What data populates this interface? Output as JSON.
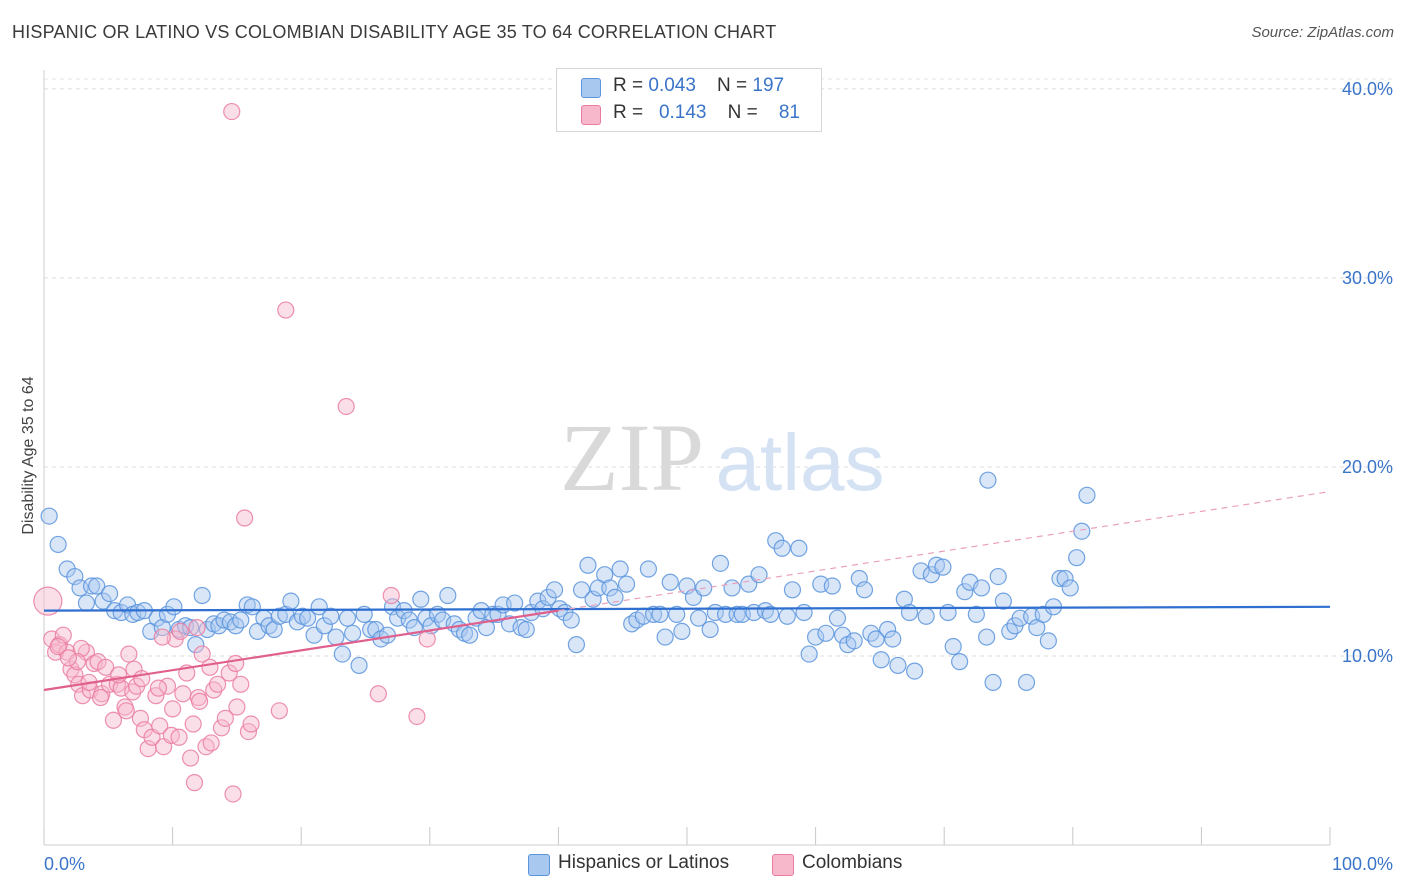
{
  "title": "HISPANIC OR LATINO VS COLOMBIAN DISABILITY AGE 35 TO 64 CORRELATION CHART",
  "source": "Source: ZipAtlas.com",
  "watermark": {
    "zip": "ZIP",
    "atlas": "atlas"
  },
  "legend": {
    "rows": [
      {
        "r_label": "R = ",
        "r_value": "0.043",
        "n_label": "N = ",
        "n_value": "197",
        "color": "#a8c8f0"
      },
      {
        "r_label": "R = ",
        "r_value": "0.143",
        "n_label": "N = ",
        "n_value": "81",
        "color": "#f7b8cc"
      }
    ]
  },
  "bottom_legend": [
    {
      "label": "Hispanics or Latinos",
      "color": "#a8c8f0"
    },
    {
      "label": "Colombians",
      "color": "#f7b8cc"
    }
  ],
  "chart_data": {
    "type": "scatter",
    "title": "HISPANIC OR LATINO VS COLOMBIAN DISABILITY AGE 35 TO 64 CORRELATION CHART",
    "ylabel": "Disability Age 35 to 64",
    "xlabel": "",
    "x_tick_labels": [
      "0.0%",
      "100.0%"
    ],
    "y_tick_labels": [
      "10.0%",
      "20.0%",
      "30.0%",
      "40.0%"
    ],
    "y_ticks": [
      10,
      20,
      30,
      40
    ],
    "xlim": [
      0,
      100
    ],
    "ylim": [
      0,
      41
    ],
    "grid": true,
    "series": [
      {
        "name": "Hispanics or Latinos",
        "color": "#5a94dd",
        "fill": "#a8c8f0",
        "trend": {
          "x": [
            0,
            100
          ],
          "y": [
            12.4,
            12.6
          ],
          "dashed": false,
          "color": "#2f6fd0"
        },
        "points": [
          [
            0.4,
            17.4
          ],
          [
            1.1,
            15.9
          ],
          [
            1.8,
            14.6
          ],
          [
            2.4,
            14.2
          ],
          [
            2.8,
            13.6
          ],
          [
            3.3,
            12.8
          ],
          [
            3.7,
            13.7
          ],
          [
            4.1,
            13.7
          ],
          [
            4.6,
            12.9
          ],
          [
            5.1,
            13.3
          ],
          [
            5.5,
            12.4
          ],
          [
            6.0,
            12.3
          ],
          [
            6.5,
            12.7
          ],
          [
            6.9,
            12.2
          ],
          [
            7.3,
            12.3
          ],
          [
            7.8,
            12.4
          ],
          [
            8.3,
            11.3
          ],
          [
            8.8,
            12.0
          ],
          [
            9.2,
            11.5
          ],
          [
            9.6,
            12.2
          ],
          [
            10.1,
            12.6
          ],
          [
            10.5,
            11.4
          ],
          [
            11.0,
            11.6
          ],
          [
            11.4,
            11.5
          ],
          [
            11.8,
            10.6
          ],
          [
            12.3,
            13.2
          ],
          [
            12.7,
            11.4
          ],
          [
            13.2,
            11.7
          ],
          [
            13.6,
            11.6
          ],
          [
            14.0,
            11.9
          ],
          [
            14.5,
            11.8
          ],
          [
            14.9,
            11.6
          ],
          [
            15.3,
            11.9
          ],
          [
            15.8,
            12.7
          ],
          [
            16.2,
            12.6
          ],
          [
            16.6,
            11.3
          ],
          [
            17.1,
            12.0
          ],
          [
            17.5,
            11.6
          ],
          [
            17.9,
            11.4
          ],
          [
            18.3,
            12.1
          ],
          [
            18.8,
            12.2
          ],
          [
            19.2,
            12.9
          ],
          [
            19.7,
            11.8
          ],
          [
            20.1,
            12.1
          ],
          [
            20.5,
            12.0
          ],
          [
            21.0,
            11.1
          ],
          [
            21.4,
            12.6
          ],
          [
            21.8,
            11.6
          ],
          [
            22.3,
            12.1
          ],
          [
            22.7,
            11.0
          ],
          [
            23.2,
            10.1
          ],
          [
            23.6,
            12.0
          ],
          [
            24.0,
            11.2
          ],
          [
            24.5,
            9.5
          ],
          [
            24.9,
            12.2
          ],
          [
            25.4,
            11.4
          ],
          [
            25.8,
            11.4
          ],
          [
            26.2,
            10.9
          ],
          [
            26.7,
            11.1
          ],
          [
            27.1,
            12.6
          ],
          [
            27.5,
            12.0
          ],
          [
            28.0,
            12.4
          ],
          [
            28.4,
            11.9
          ],
          [
            28.8,
            11.5
          ],
          [
            29.3,
            13.0
          ],
          [
            29.7,
            12.0
          ],
          [
            30.1,
            11.6
          ],
          [
            30.6,
            12.2
          ],
          [
            31.0,
            11.9
          ],
          [
            31.4,
            13.2
          ],
          [
            31.9,
            11.7
          ],
          [
            32.3,
            11.4
          ],
          [
            32.7,
            11.2
          ],
          [
            33.1,
            11.1
          ],
          [
            33.6,
            12.0
          ],
          [
            34.0,
            12.4
          ],
          [
            34.4,
            11.5
          ],
          [
            34.9,
            12.2
          ],
          [
            35.3,
            12.2
          ],
          [
            35.7,
            12.7
          ],
          [
            36.2,
            11.7
          ],
          [
            36.6,
            12.8
          ],
          [
            37.1,
            11.5
          ],
          [
            37.5,
            11.4
          ],
          [
            37.9,
            12.3
          ],
          [
            38.4,
            12.9
          ],
          [
            38.8,
            12.5
          ],
          [
            39.2,
            13.1
          ],
          [
            39.7,
            13.5
          ],
          [
            40.1,
            12.5
          ],
          [
            40.5,
            12.3
          ],
          [
            41.0,
            11.9
          ],
          [
            41.4,
            10.6
          ],
          [
            41.8,
            13.5
          ],
          [
            42.3,
            14.8
          ],
          [
            42.7,
            13.0
          ],
          [
            43.1,
            13.6
          ],
          [
            43.6,
            14.3
          ],
          [
            44.0,
            13.6
          ],
          [
            44.4,
            13.1
          ],
          [
            44.8,
            14.6
          ],
          [
            45.3,
            13.8
          ],
          [
            45.7,
            11.7
          ],
          [
            46.1,
            11.9
          ],
          [
            46.6,
            12.1
          ],
          [
            47.0,
            14.6
          ],
          [
            47.4,
            12.2
          ],
          [
            47.9,
            12.2
          ],
          [
            48.3,
            11.0
          ],
          [
            48.7,
            13.9
          ],
          [
            49.2,
            12.2
          ],
          [
            49.6,
            11.3
          ],
          [
            50.0,
            13.7
          ],
          [
            50.5,
            13.1
          ],
          [
            50.9,
            12.0
          ],
          [
            51.3,
            13.6
          ],
          [
            51.8,
            11.4
          ],
          [
            52.2,
            12.3
          ],
          [
            52.6,
            14.9
          ],
          [
            53.0,
            12.2
          ],
          [
            53.5,
            13.6
          ],
          [
            53.9,
            12.2
          ],
          [
            54.3,
            12.2
          ],
          [
            54.8,
            13.8
          ],
          [
            55.2,
            12.3
          ],
          [
            55.6,
            14.3
          ],
          [
            56.1,
            12.4
          ],
          [
            56.5,
            12.2
          ],
          [
            56.9,
            16.1
          ],
          [
            57.4,
            15.7
          ],
          [
            57.8,
            12.1
          ],
          [
            58.2,
            13.5
          ],
          [
            58.7,
            15.7
          ],
          [
            59.1,
            12.3
          ],
          [
            59.5,
            10.1
          ],
          [
            60.0,
            11.0
          ],
          [
            60.4,
            13.8
          ],
          [
            60.8,
            11.2
          ],
          [
            61.3,
            13.7
          ],
          [
            61.7,
            12.0
          ],
          [
            62.1,
            11.1
          ],
          [
            62.5,
            10.6
          ],
          [
            63.0,
            10.8
          ],
          [
            63.4,
            14.1
          ],
          [
            63.8,
            13.5
          ],
          [
            64.3,
            11.2
          ],
          [
            64.7,
            10.9
          ],
          [
            65.1,
            9.8
          ],
          [
            65.6,
            11.4
          ],
          [
            66.0,
            10.9
          ],
          [
            66.4,
            9.5
          ],
          [
            66.9,
            13.0
          ],
          [
            67.3,
            12.3
          ],
          [
            67.7,
            9.2
          ],
          [
            68.2,
            14.5
          ],
          [
            68.6,
            12.1
          ],
          [
            69.0,
            14.3
          ],
          [
            69.4,
            14.8
          ],
          [
            69.9,
            14.7
          ],
          [
            70.3,
            12.3
          ],
          [
            70.7,
            10.5
          ],
          [
            71.2,
            9.7
          ],
          [
            71.6,
            13.4
          ],
          [
            72.0,
            13.9
          ],
          [
            72.5,
            12.2
          ],
          [
            72.9,
            13.6
          ],
          [
            73.3,
            11.0
          ],
          [
            73.8,
            8.6
          ],
          [
            74.2,
            14.2
          ],
          [
            74.6,
            12.9
          ],
          [
            75.1,
            11.3
          ],
          [
            75.5,
            11.6
          ],
          [
            75.9,
            12.0
          ],
          [
            76.4,
            8.6
          ],
          [
            76.8,
            12.1
          ],
          [
            77.2,
            11.5
          ],
          [
            77.7,
            12.2
          ],
          [
            78.1,
            10.8
          ],
          [
            78.5,
            12.6
          ],
          [
            79.0,
            14.1
          ],
          [
            79.4,
            14.1
          ],
          [
            79.8,
            13.6
          ],
          [
            80.3,
            15.2
          ],
          [
            80.7,
            16.6
          ],
          [
            81.1,
            18.5
          ],
          [
            73.4,
            19.3
          ]
        ]
      },
      {
        "name": "Colombians",
        "color": "#ea7ca0",
        "fill": "#f7b8cc",
        "trend": {
          "x": [
            0,
            40
          ],
          "y": [
            8.2,
            12.4
          ],
          "dashed": false,
          "color": "#e0608d",
          "extension": {
            "x": [
              40,
              100
            ],
            "y": [
              12.4,
              18.7
            ],
            "dashed": true
          }
        },
        "points": [
          [
            0.3,
            12.9
          ],
          [
            0.6,
            10.9
          ],
          [
            0.9,
            10.2
          ],
          [
            1.2,
            10.6
          ],
          [
            1.5,
            11.1
          ],
          [
            1.8,
            10.2
          ],
          [
            2.1,
            9.3
          ],
          [
            2.4,
            9.0
          ],
          [
            2.7,
            8.5
          ],
          [
            3.0,
            7.9
          ],
          [
            3.3,
            10.2
          ],
          [
            3.6,
            8.2
          ],
          [
            3.9,
            9.6
          ],
          [
            4.2,
            9.7
          ],
          [
            4.5,
            8.0
          ],
          [
            4.8,
            9.4
          ],
          [
            5.1,
            8.5
          ],
          [
            5.4,
            6.6
          ],
          [
            5.7,
            8.5
          ],
          [
            6.0,
            8.3
          ],
          [
            6.3,
            7.3
          ],
          [
            6.6,
            10.1
          ],
          [
            6.9,
            8.1
          ],
          [
            7.2,
            8.4
          ],
          [
            7.5,
            6.7
          ],
          [
            7.8,
            6.1
          ],
          [
            8.1,
            5.1
          ],
          [
            8.4,
            5.7
          ],
          [
            8.7,
            7.9
          ],
          [
            9.0,
            6.3
          ],
          [
            9.3,
            5.2
          ],
          [
            9.6,
            8.4
          ],
          [
            9.9,
            5.8
          ],
          [
            10.2,
            10.9
          ],
          [
            10.5,
            5.7
          ],
          [
            10.8,
            8.0
          ],
          [
            11.1,
            9.1
          ],
          [
            11.4,
            4.6
          ],
          [
            11.7,
            3.3
          ],
          [
            12.0,
            7.8
          ],
          [
            12.3,
            10.1
          ],
          [
            12.6,
            5.2
          ],
          [
            12.9,
            9.4
          ],
          [
            13.2,
            8.2
          ],
          [
            13.5,
            8.5
          ],
          [
            13.8,
            6.2
          ],
          [
            14.1,
            6.7
          ],
          [
            14.4,
            9.1
          ],
          [
            14.7,
            2.7
          ],
          [
            15.0,
            7.3
          ],
          [
            15.3,
            8.5
          ],
          [
            15.6,
            17.3
          ],
          [
            15.9,
            6.0
          ],
          [
            18.3,
            7.1
          ],
          [
            18.8,
            28.3
          ],
          [
            23.5,
            23.2
          ],
          [
            26.0,
            8.0
          ],
          [
            27.0,
            13.2
          ],
          [
            29.0,
            6.8
          ],
          [
            29.8,
            10.9
          ],
          [
            14.6,
            38.8
          ],
          [
            10.6,
            11.3
          ],
          [
            9.2,
            11.0
          ],
          [
            11.9,
            11.5
          ],
          [
            2.9,
            10.4
          ],
          [
            4.4,
            7.8
          ],
          [
            7.0,
            9.3
          ],
          [
            5.8,
            9.0
          ],
          [
            8.9,
            8.3
          ],
          [
            12.1,
            7.6
          ],
          [
            13.0,
            5.4
          ],
          [
            14.9,
            9.6
          ],
          [
            6.4,
            7.1
          ],
          [
            3.5,
            8.6
          ],
          [
            2.6,
            9.7
          ],
          [
            1.1,
            10.5
          ],
          [
            1.9,
            9.9
          ],
          [
            7.6,
            8.8
          ],
          [
            10.0,
            7.2
          ],
          [
            11.6,
            6.4
          ],
          [
            16.1,
            6.4
          ]
        ]
      }
    ]
  }
}
